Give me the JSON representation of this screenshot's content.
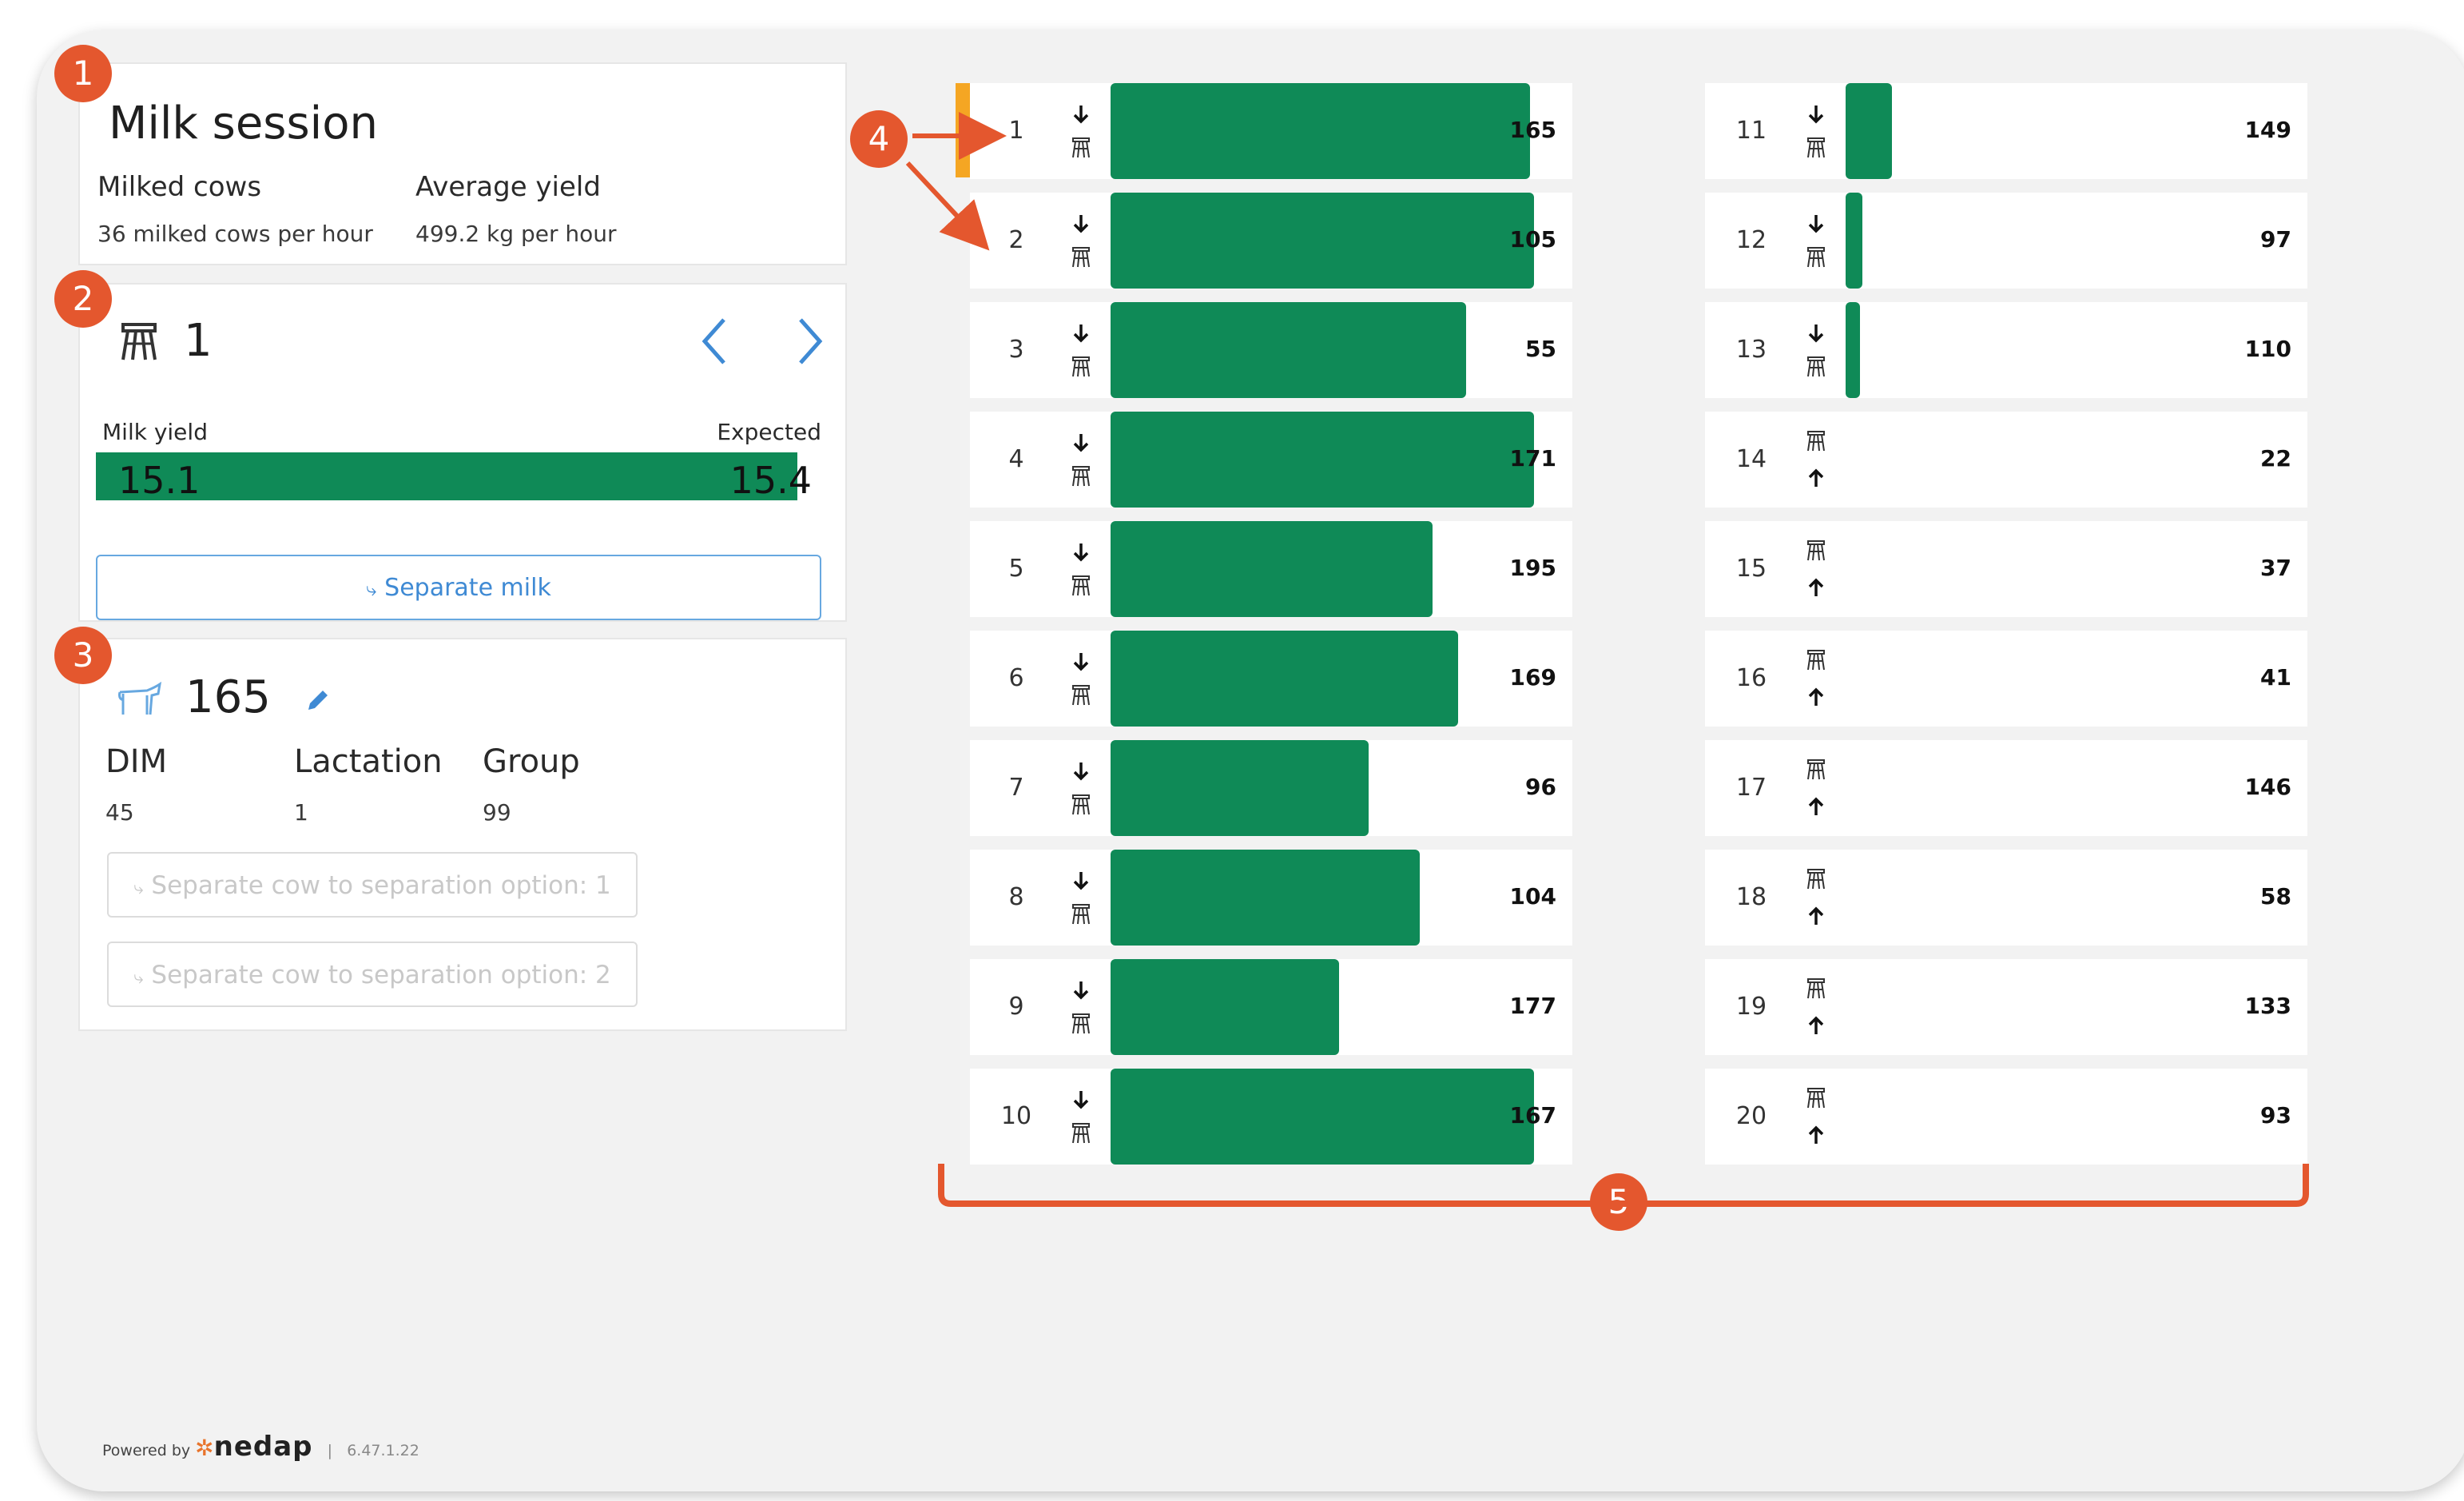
{
  "session": {
    "title": "Milk session",
    "milked_label": "Milked cows",
    "milked_value": "36 milked cows per hour",
    "yield_label": "Average yield",
    "yield_value": "499.2 kg per hour"
  },
  "stall_panel": {
    "stall_number": "1",
    "milk_yield_label": "Milk yield",
    "expected_label": "Expected",
    "milk_yield_value": "15.1",
    "expected_value": "15.4",
    "yield_fill_fraction": 0.98,
    "separate_button": "Separate milk"
  },
  "cow_panel": {
    "cow_number": "165",
    "attributes": [
      {
        "label": "DIM",
        "value": "45"
      },
      {
        "label": "Lactation",
        "value": "1"
      },
      {
        "label": "Group",
        "value": "99"
      }
    ],
    "separation_options": [
      "Separate cow to separation option: 1",
      "Separate cow to separation option: 2"
    ]
  },
  "footer": {
    "powered_by": "Powered by",
    "brand": "nedap",
    "separator": "|",
    "version": "6.47.1.22"
  },
  "stalls_left": [
    {
      "stall": "1",
      "cow": "165",
      "progress": 0.99,
      "direction": "down"
    },
    {
      "stall": "2",
      "cow": "105",
      "progress": 1.0,
      "direction": "down"
    },
    {
      "stall": "3",
      "cow": "55",
      "progress": 0.84,
      "direction": "down"
    },
    {
      "stall": "4",
      "cow": "171",
      "progress": 1.0,
      "direction": "down"
    },
    {
      "stall": "5",
      "cow": "195",
      "progress": 0.76,
      "direction": "down"
    },
    {
      "stall": "6",
      "cow": "169",
      "progress": 0.82,
      "direction": "down"
    },
    {
      "stall": "7",
      "cow": "96",
      "progress": 0.61,
      "direction": "down"
    },
    {
      "stall": "8",
      "cow": "104",
      "progress": 0.73,
      "direction": "down"
    },
    {
      "stall": "9",
      "cow": "177",
      "progress": 0.54,
      "direction": "down"
    },
    {
      "stall": "10",
      "cow": "167",
      "progress": 1.0,
      "direction": "down"
    }
  ],
  "stalls_right": [
    {
      "stall": "11",
      "cow": "149",
      "progress": 0.11,
      "direction": "down"
    },
    {
      "stall": "12",
      "cow": "97",
      "progress": 0.04,
      "direction": "down"
    },
    {
      "stall": "13",
      "cow": "110",
      "progress": 0.03,
      "direction": "down"
    },
    {
      "stall": "14",
      "cow": "22",
      "progress": 0,
      "direction": "up"
    },
    {
      "stall": "15",
      "cow": "37",
      "progress": 0,
      "direction": "up"
    },
    {
      "stall": "16",
      "cow": "41",
      "progress": 0,
      "direction": "up"
    },
    {
      "stall": "17",
      "cow": "146",
      "progress": 0,
      "direction": "up"
    },
    {
      "stall": "18",
      "cow": "58",
      "progress": 0,
      "direction": "up"
    },
    {
      "stall": "19",
      "cow": "133",
      "progress": 0,
      "direction": "up"
    },
    {
      "stall": "20",
      "cow": "93",
      "progress": 0,
      "direction": "up"
    }
  ],
  "annotations": [
    "1",
    "2",
    "3",
    "4",
    "5"
  ],
  "colors": {
    "bar_green": "#0f8a57",
    "active_marker": "#f5a623",
    "annotation": "#e4572e",
    "button_blue": "#3f8ad4"
  }
}
